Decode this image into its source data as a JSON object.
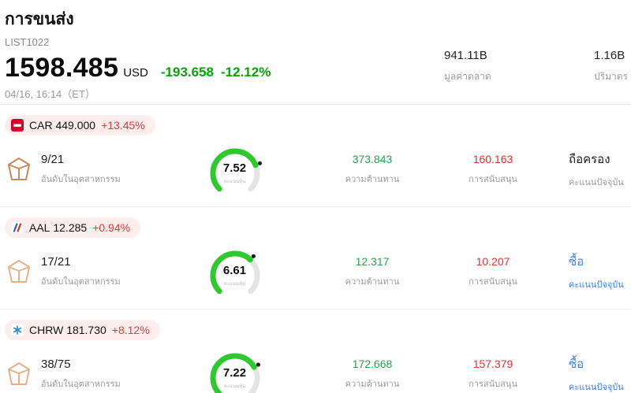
{
  "colors": {
    "change_green": "#00a800",
    "value_green": "#2e9e4f",
    "value_red": "#e03131",
    "pill_bg": "#fdeded",
    "pill_red": "#e23b3b",
    "buy_blue": "#3d7eea",
    "hold_black": "#1a1a1a",
    "gauge_green": "#2fc92f",
    "gauge_track": "#e4e4e4",
    "gauge_dot": "#222222"
  },
  "header": {
    "title": "การขนส่ง",
    "subtitle": "LIST1022",
    "price": "1598.485",
    "currency": "USD",
    "change_abs": "-193.658",
    "change_pct": "-12.12%",
    "datetime": "04/16, 16:14（ET）",
    "stats": [
      {
        "value": "941.11B",
        "label": "มูลค่าตลาด"
      },
      {
        "value": "1.16B",
        "label": "ปริมาตร"
      }
    ]
  },
  "stocks": [
    {
      "ticker": "CAR",
      "price": "449.000",
      "change": "+13.45%",
      "icon": "avis-logo",
      "logo_color": "#c98a5e",
      "rank": "9/21",
      "rank_label": "อันดับในอุตสาหกรรม",
      "gauge": {
        "value": "7.52",
        "pct": 0.752,
        "label": "คะแนนหุ้น"
      },
      "resistance": {
        "value": "373.843",
        "label": "ความต้านทาน"
      },
      "support": {
        "value": "160.163",
        "label": "การสนับสนุน"
      },
      "signal": {
        "value": "ถือครอง",
        "color": "#1a1a1a",
        "label": "คะแนนปัจจุบัน",
        "label_color": "#9a9a9a"
      }
    },
    {
      "ticker": "AAL",
      "price": "12.285",
      "change": "+0.94%",
      "icon": "american-airlines-logo",
      "logo_color": "#e8b08a",
      "rank": "17/21",
      "rank_label": "อันดับในอุตสาหกรรม",
      "gauge": {
        "value": "6.61",
        "pct": 0.661,
        "label": "คะแนนหุ้น"
      },
      "resistance": {
        "value": "12.317",
        "label": "ความต้านทาน"
      },
      "support": {
        "value": "10.207",
        "label": "การสนับสนุน"
      },
      "signal": {
        "value": "ซื้อ",
        "color": "#3d7eea",
        "label": "คะแนนปัจจุบัน",
        "label_color": "#3d7eea"
      }
    },
    {
      "ticker": "CHRW",
      "price": "181.730",
      "change": "+8.12%",
      "icon": "ch-robinson-logo",
      "logo_color": "#e8b08a",
      "rank": "38/75",
      "rank_label": "อันดับในอุตสาหกรรม",
      "gauge": {
        "value": "7.22",
        "pct": 0.722,
        "label": "คะแนนหุ้น"
      },
      "resistance": {
        "value": "172.668",
        "label": "ความต้านทาน"
      },
      "support": {
        "value": "157.379",
        "label": "การสนับสนุน"
      },
      "signal": {
        "value": "ซื้อ",
        "color": "#3d7eea",
        "label": "คะแนนปัจจุบัน",
        "label_color": "#3d7eea"
      }
    }
  ]
}
